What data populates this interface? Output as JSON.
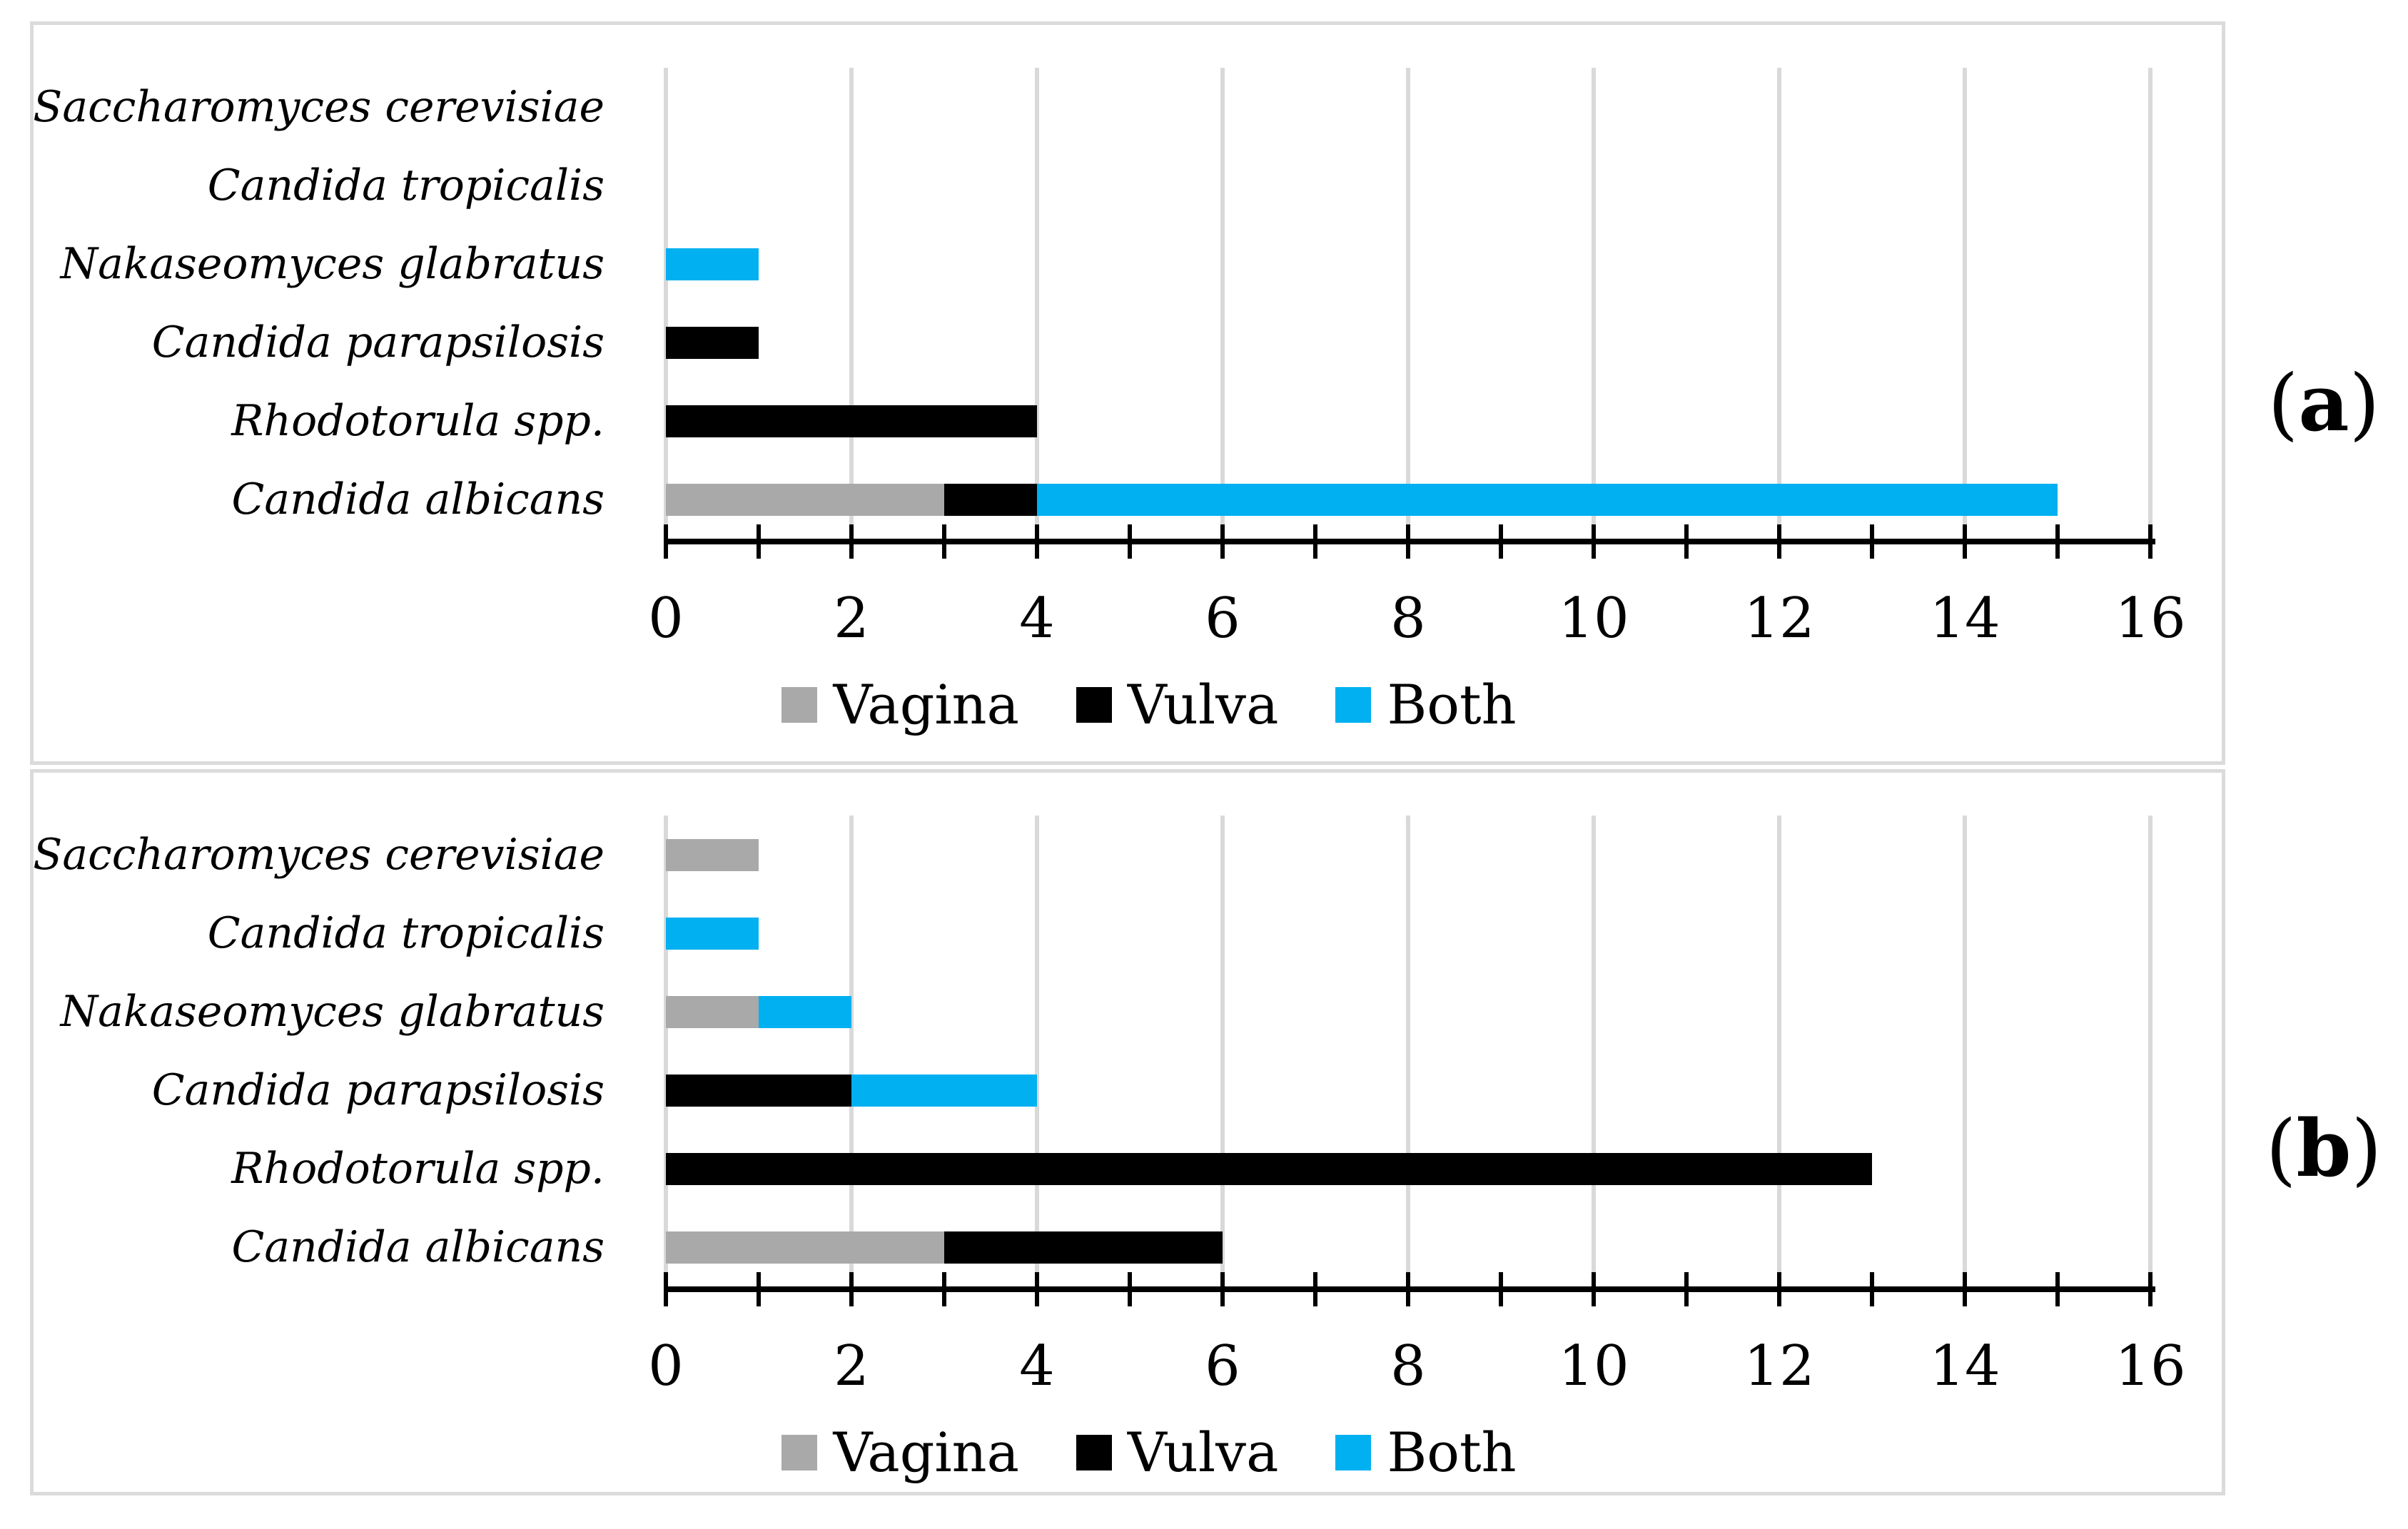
{
  "figure": {
    "panels": [
      {
        "prefix": "(",
        "letter": "a",
        "suffix": ")"
      },
      {
        "prefix": "(",
        "letter": "b",
        "suffix": ")"
      }
    ]
  },
  "colors": {
    "vagina_gray": "#A9A9A9",
    "vulva_black": "#000000",
    "both_blue": "#00B0F0",
    "gridline": "#D9D9D9",
    "axis": "#000000",
    "panel_border": "#DBDBDB"
  },
  "chart_data": [
    {
      "type": "bar",
      "orientation": "horizontal",
      "stacked": true,
      "panel_label": "(a)",
      "categories": [
        "Saccharomyces cerevisiae",
        "Candida tropicalis",
        "Nakaseomyces glabratus",
        "Candida parapsilosis",
        "Rhodotorula spp.",
        "Candida albicans"
      ],
      "series": [
        {
          "name": "Vagina",
          "color": "#A9A9A9",
          "values": [
            0,
            0,
            0,
            0,
            0,
            3
          ]
        },
        {
          "name": "Vulva",
          "color": "#000000",
          "values": [
            0,
            0,
            0,
            1,
            4,
            1
          ]
        },
        {
          "name": "Both",
          "color": "#00B0F0",
          "values": [
            0,
            0,
            1,
            0,
            0,
            11
          ]
        }
      ],
      "xlim": [
        0,
        16
      ],
      "tick_step": 1,
      "grid_step": 2,
      "label_step": 2,
      "x_tick_labels": [
        "0",
        "2",
        "4",
        "6",
        "8",
        "10",
        "12",
        "14",
        "16"
      ],
      "grid": true,
      "legend_position": "bottom"
    },
    {
      "type": "bar",
      "orientation": "horizontal",
      "stacked": true,
      "panel_label": "(b)",
      "categories": [
        "Saccharomyces cerevisiae",
        "Candida tropicalis",
        "Nakaseomyces glabratus",
        "Candida parapsilosis",
        "Rhodotorula spp.",
        "Candida albicans"
      ],
      "series": [
        {
          "name": "Vagina",
          "color": "#A9A9A9",
          "values": [
            1,
            0,
            1,
            0,
            0,
            3
          ]
        },
        {
          "name": "Vulva",
          "color": "#000000",
          "values": [
            0,
            0,
            0,
            2,
            13,
            3
          ]
        },
        {
          "name": "Both",
          "color": "#00B0F0",
          "values": [
            0,
            1,
            1,
            2,
            0,
            0
          ]
        }
      ],
      "xlim": [
        0,
        16
      ],
      "tick_step": 1,
      "grid_step": 2,
      "label_step": 2,
      "x_tick_labels": [
        "0",
        "2",
        "4",
        "6",
        "8",
        "10",
        "12",
        "14",
        "16"
      ],
      "grid": true,
      "legend_position": "bottom"
    }
  ]
}
